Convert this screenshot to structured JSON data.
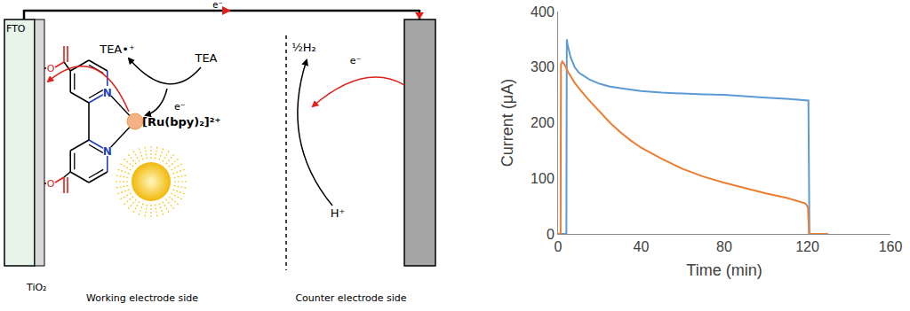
{
  "diagram": {
    "electrodes": {
      "working": "FTO",
      "layer": "TiO₂"
    },
    "molecule": {
      "complex": "[Ru(bpy)₂]²⁺",
      "atoms": [
        "N",
        "O"
      ]
    },
    "donor": {
      "reduced": "TEA",
      "oxidized": "TEA•⁺"
    },
    "electron": "e⁻",
    "counter": {
      "product": "½H₂",
      "reactant": "H⁺"
    },
    "sides": {
      "working": "Working electrode side",
      "counter": "Counter electrode side"
    }
  },
  "chart_data": {
    "type": "line",
    "xlabel": "Time (min)",
    "ylabel": "Current (μA)",
    "xlim": [
      0,
      160
    ],
    "ylim": [
      0,
      400
    ],
    "xticks": [
      0,
      40,
      80,
      120,
      160
    ],
    "yticks": [
      0,
      100,
      200,
      300,
      400
    ],
    "grid": false,
    "series": [
      {
        "color": "#5b9bd5",
        "x": [
          0,
          4,
          4.2,
          4.6,
          6,
          8,
          10,
          15,
          20,
          25,
          30,
          40,
          50,
          60,
          70,
          80,
          90,
          100,
          110,
          118,
          120.5,
          121,
          125
        ],
        "values": [
          0,
          0,
          350,
          340,
          318,
          300,
          290,
          278,
          270,
          265,
          262,
          257,
          254,
          252,
          251,
          250,
          247,
          245,
          243,
          241,
          240,
          0,
          0
        ]
      },
      {
        "color": "#ed7d31",
        "x": [
          0,
          1.2,
          1.4,
          2,
          3,
          5,
          8,
          10,
          15,
          20,
          25,
          30,
          35,
          40,
          50,
          60,
          70,
          80,
          90,
          100,
          110,
          119,
          120.3,
          120.8,
          130
        ],
        "values": [
          0,
          0,
          305,
          310,
          305,
          290,
          272,
          262,
          240,
          220,
          200,
          183,
          168,
          155,
          135,
          117,
          103,
          92,
          82,
          73,
          65,
          55,
          48,
          0,
          0
        ]
      }
    ]
  }
}
